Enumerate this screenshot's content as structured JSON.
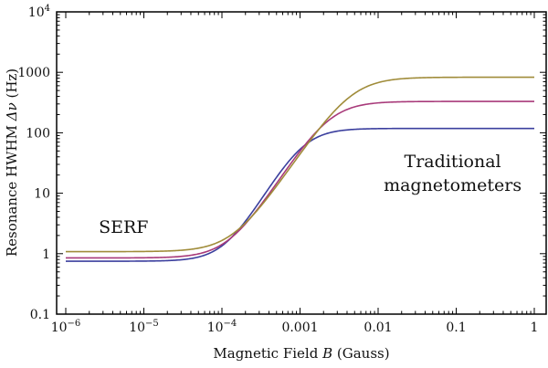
{
  "chart_data": {
    "type": "line",
    "title": "",
    "xlabel": "Magnetic Field B (Gauss)",
    "xlabel_parts": {
      "pre": "Magnetic Field ",
      "var": "B",
      "post": " (Gauss)"
    },
    "ylabel": "Resonance HWHM Δν (Hz)",
    "ylabel_parts": {
      "pre": "Resonance HWHM ",
      "var": "Δν",
      "post": " (Hz)"
    },
    "xscale": "log",
    "yscale": "log",
    "xlim": [
      1e-06,
      1
    ],
    "ylim": [
      0.1,
      10000
    ],
    "x_ticks": [
      {
        "value": 1e-06,
        "base": "10",
        "exp": "−6"
      },
      {
        "value": 1e-05,
        "base": "10",
        "exp": "−5"
      },
      {
        "value": 0.0001,
        "base": "10",
        "exp": "−4"
      },
      {
        "value": 0.001,
        "label": "0.001"
      },
      {
        "value": 0.01,
        "label": "0.01"
      },
      {
        "value": 0.1,
        "label": "0.1"
      },
      {
        "value": 1,
        "label": "1"
      }
    ],
    "y_ticks": [
      {
        "value": 0.1,
        "label": "0.1"
      },
      {
        "value": 1,
        "label": "1"
      },
      {
        "value": 10,
        "label": "10"
      },
      {
        "value": 100,
        "label": "100"
      },
      {
        "value": 1000,
        "label": "1000"
      },
      {
        "value": 10000,
        "base": "10",
        "exp": "4"
      }
    ],
    "grid": false,
    "series": [
      {
        "name": "blue",
        "color": "#3b3f9e",
        "low": 0.75,
        "high": 118,
        "mid": 0.0011,
        "steep": 2.2
      },
      {
        "name": "magenta",
        "color": "#a83a7a",
        "low": 0.85,
        "high": 330,
        "mid": 0.0024,
        "steep": 2.0
      },
      {
        "name": "gold",
        "color": "#a08c3a",
        "low": 1.08,
        "high": 830,
        "mid": 0.0046,
        "steep": 1.9
      }
    ],
    "annotations": [
      {
        "text": "SERF",
        "x": 5.5e-06,
        "y": 2.2
      },
      {
        "text": "Traditional",
        "x": 0.09,
        "y": 27
      },
      {
        "text": "magnetometers",
        "x": 0.09,
        "y": 11
      }
    ]
  }
}
